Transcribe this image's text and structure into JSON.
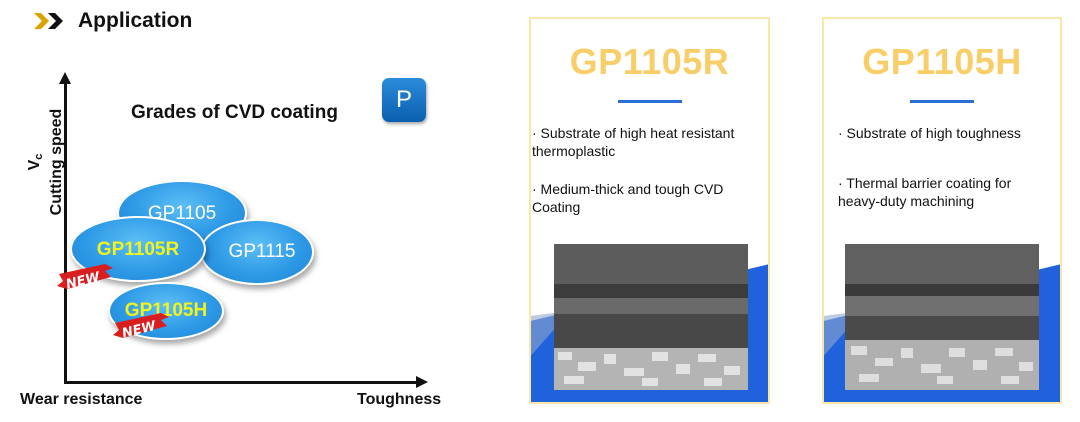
{
  "header": {
    "title": "Application",
    "chevron_color": "#d9a400",
    "chevron2_color": "#111111"
  },
  "diagram": {
    "title": "Grades of CVD coating",
    "badge": "P",
    "y_axis": {
      "symbol": "V",
      "symbol_sub": "c",
      "label": "Cutting speed"
    },
    "x_axis": {
      "low_label": "Wear resistance",
      "high_label": "Toughness"
    },
    "grades": [
      {
        "name": "GP1105",
        "highlight": false,
        "new": false
      },
      {
        "name": "GP1115",
        "highlight": false,
        "new": false
      },
      {
        "name": "GP1105R",
        "highlight": true,
        "new": true
      },
      {
        "name": "GP1105H",
        "highlight": true,
        "new": true
      }
    ],
    "new_label": "NEW",
    "colors": {
      "grade_fill": "#2e9ae6",
      "highlight_text": "#f2f21c",
      "new_tag": "#d81e1e"
    }
  },
  "cards": [
    {
      "title": "GP1105R",
      "bullets": [
        "· Substrate of high heat resistant thermoplastic",
        "· Medium-thick and tough CVD Coating"
      ]
    },
    {
      "title": "GP1105H",
      "bullets": [
        "· Substrate of high toughness",
        "· Thermal barrier coating for heavy-duty machining"
      ]
    }
  ],
  "colors": {
    "card_title": "#f9ce69",
    "card_border": "#f9e8a8",
    "card_rule": "#2a6fd6",
    "card_accent": "#1f62dc"
  }
}
